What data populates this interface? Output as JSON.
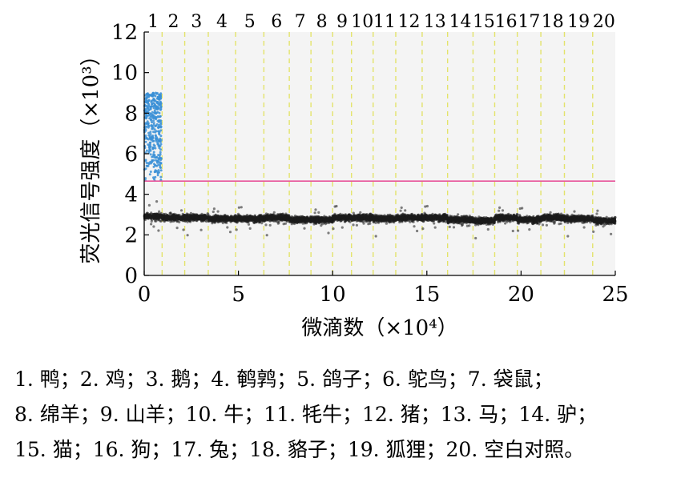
{
  "chart_data": {
    "type": "scatter",
    "xlabel": "微滴数（×10⁴）",
    "ylabel": "荧光信号强度（×10³）",
    "xlim": [
      0,
      25
    ],
    "ylim": [
      0,
      12
    ],
    "xticks": [
      0,
      5,
      10,
      15,
      20,
      25
    ],
    "yticks": [
      0,
      2,
      4,
      6,
      8,
      10,
      12
    ],
    "threshold": 4.65,
    "threshold_color": "#e8559a",
    "positive_color": "#3a8fd6",
    "negative_color": "#1c1c1c",
    "separator_color": "#e3e36a",
    "well_labels": [
      "1",
      "2",
      "3",
      "4",
      "5",
      "6",
      "7",
      "8",
      "9",
      "10",
      "11",
      "12",
      "13",
      "14",
      "15",
      "16",
      "17",
      "18",
      "19",
      "20"
    ],
    "well_boundaries": [
      0.95,
      2.15,
      3.4,
      4.85,
      6.35,
      7.7,
      8.85,
      10.0,
      11.0,
      12.15,
      13.35,
      14.75,
      16.1,
      17.45,
      18.6,
      19.8,
      21.05,
      22.3,
      23.8
    ],
    "wells": [
      {
        "label": "1",
        "x": [
          0.0,
          0.95
        ],
        "positive_range": [
          4.6,
          9.0
        ],
        "negative_mean": 2.9
      },
      {
        "label": "2",
        "x": [
          0.95,
          2.15
        ],
        "negative_mean": 2.85
      },
      {
        "label": "3",
        "x": [
          2.15,
          3.4
        ],
        "negative_mean": 2.85
      },
      {
        "label": "4",
        "x": [
          3.4,
          4.85
        ],
        "negative_mean": 2.8
      },
      {
        "label": "5",
        "x": [
          4.85,
          6.35
        ],
        "negative_mean": 2.8
      },
      {
        "label": "6",
        "x": [
          6.35,
          7.7
        ],
        "negative_mean": 2.85
      },
      {
        "label": "7",
        "x": [
          7.7,
          8.85
        ],
        "negative_mean": 2.75
      },
      {
        "label": "8",
        "x": [
          8.85,
          10.0
        ],
        "negative_mean": 2.75
      },
      {
        "label": "9",
        "x": [
          10.0,
          11.0
        ],
        "negative_mean": 2.85
      },
      {
        "label": "10",
        "x": [
          11.0,
          12.15
        ],
        "negative_mean": 2.85
      },
      {
        "label": "11",
        "x": [
          12.15,
          13.35
        ],
        "negative_mean": 2.8
      },
      {
        "label": "12",
        "x": [
          13.35,
          14.75
        ],
        "negative_mean": 2.85
      },
      {
        "label": "13",
        "x": [
          14.75,
          16.1
        ],
        "negative_mean": 2.85
      },
      {
        "label": "14",
        "x": [
          16.1,
          17.45
        ],
        "negative_mean": 2.75
      },
      {
        "label": "15",
        "x": [
          17.45,
          18.6
        ],
        "negative_mean": 2.7
      },
      {
        "label": "16",
        "x": [
          18.6,
          19.8
        ],
        "negative_mean": 2.85
      },
      {
        "label": "17",
        "x": [
          19.8,
          21.05
        ],
        "negative_mean": 2.75
      },
      {
        "label": "18",
        "x": [
          21.05,
          22.3
        ],
        "negative_mean": 2.85
      },
      {
        "label": "19",
        "x": [
          22.3,
          23.8
        ],
        "negative_mean": 2.8
      },
      {
        "label": "20",
        "x": [
          23.8,
          25.0
        ],
        "negative_mean": 2.7
      }
    ]
  },
  "caption": {
    "lines": [
      "1. 鸭；2. 鸡；3. 鹅；4. 鹌鹑；5. 鸽子；6. 鸵鸟；7. 袋鼠；",
      "8. 绵羊；9. 山羊；10. 牛；11. 牦牛；12. 猪；13. 马；14. 驴；",
      "15. 猫；16. 狗；17. 兔；18. 貉子；19. 狐狸；20. 空白对照。"
    ]
  }
}
